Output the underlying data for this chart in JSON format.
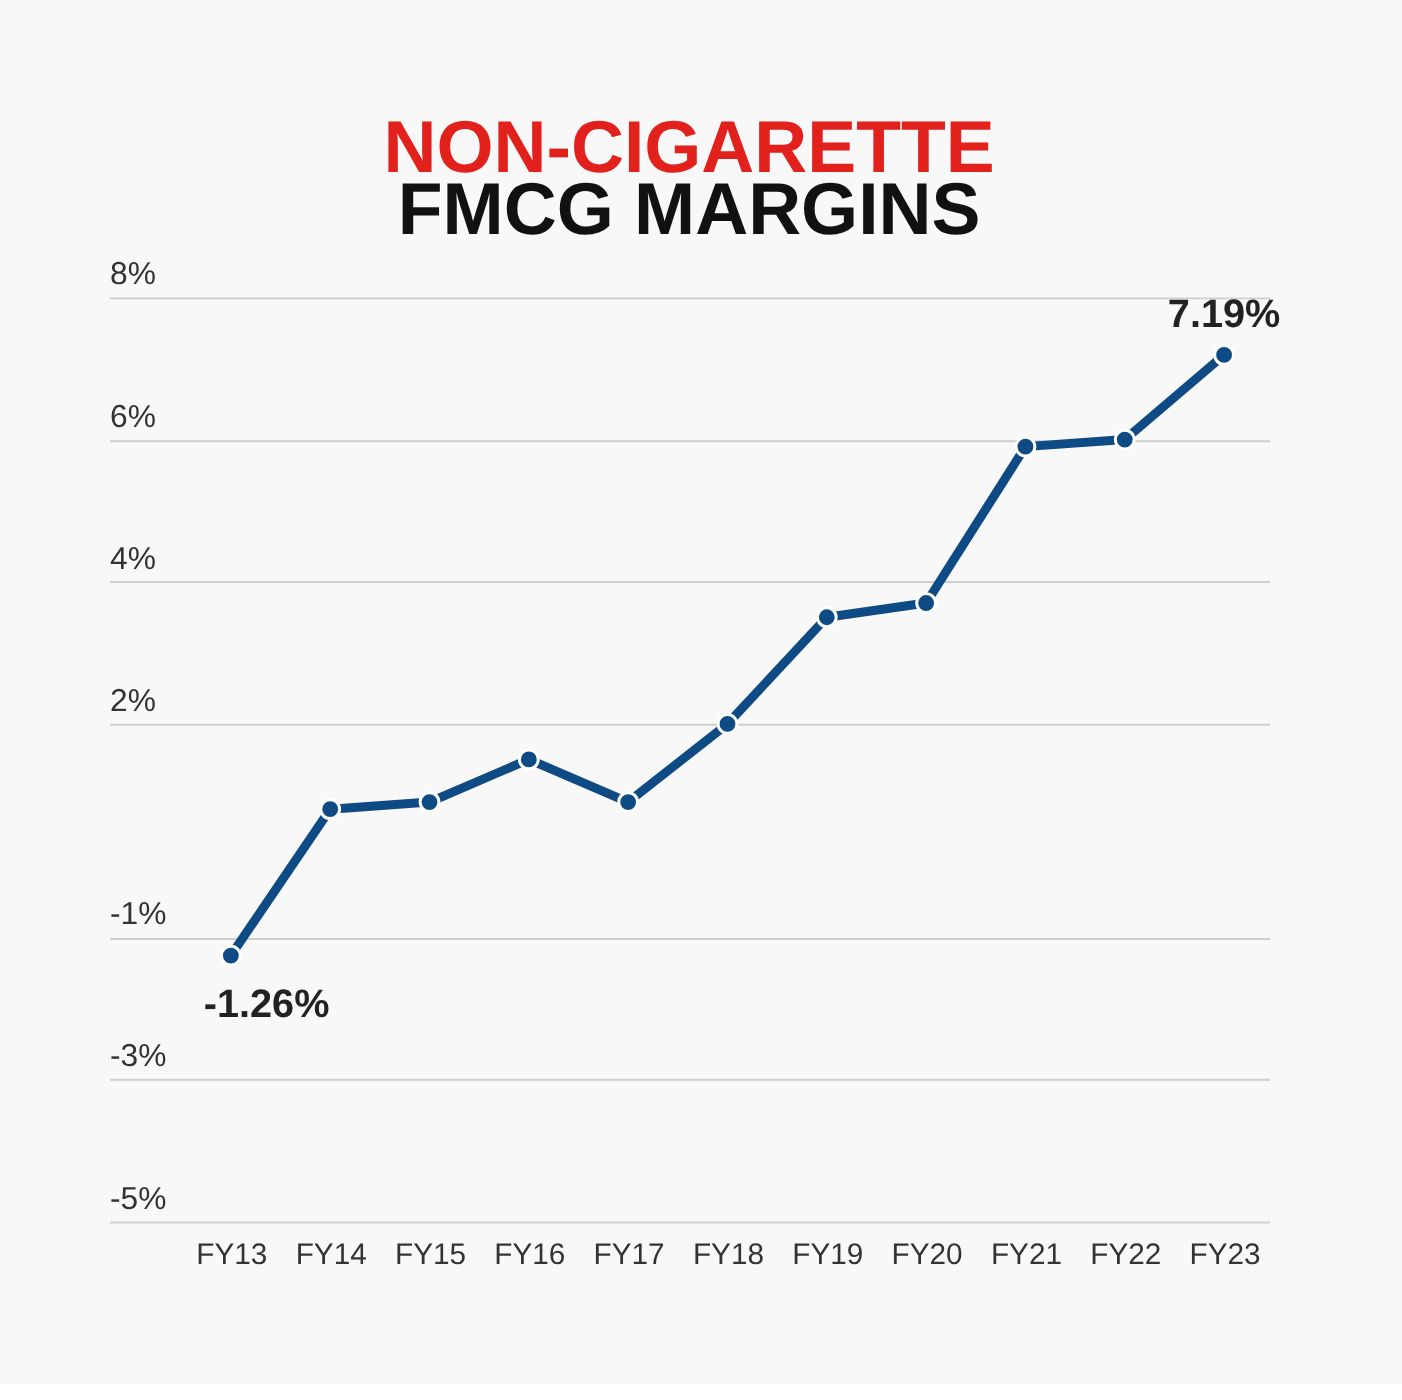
{
  "chart_data": {
    "type": "line",
    "title": "NON-CIGARETTE FMCG MARGINS",
    "categories": [
      "FY13",
      "FY14",
      "FY15",
      "FY16",
      "FY17",
      "FY18",
      "FY19",
      "FY20",
      "FY21",
      "FY22",
      "FY23"
    ],
    "values": [
      -1.26,
      0.8,
      0.9,
      1.5,
      0.9,
      2.0,
      3.5,
      3.7,
      5.9,
      6.0,
      7.19
    ],
    "value_labels": [
      "-1.26%",
      null,
      null,
      null,
      null,
      null,
      null,
      null,
      null,
      null,
      "7.19%"
    ],
    "color": "#0e4a84",
    "ylim": [
      -5,
      8
    ],
    "yticks": [
      {
        "value": -5,
        "label": "-5%"
      },
      {
        "value": -3,
        "label": "-3%"
      },
      {
        "value": -1,
        "label": "-1%"
      },
      {
        "value": 2,
        "label": "2%"
      },
      {
        "value": 4,
        "label": "4%"
      },
      {
        "value": 6,
        "label": "6%"
      },
      {
        "value": 8,
        "label": "8%"
      }
    ],
    "grid": "y",
    "marker": "circle",
    "line_style": "solid"
  }
}
